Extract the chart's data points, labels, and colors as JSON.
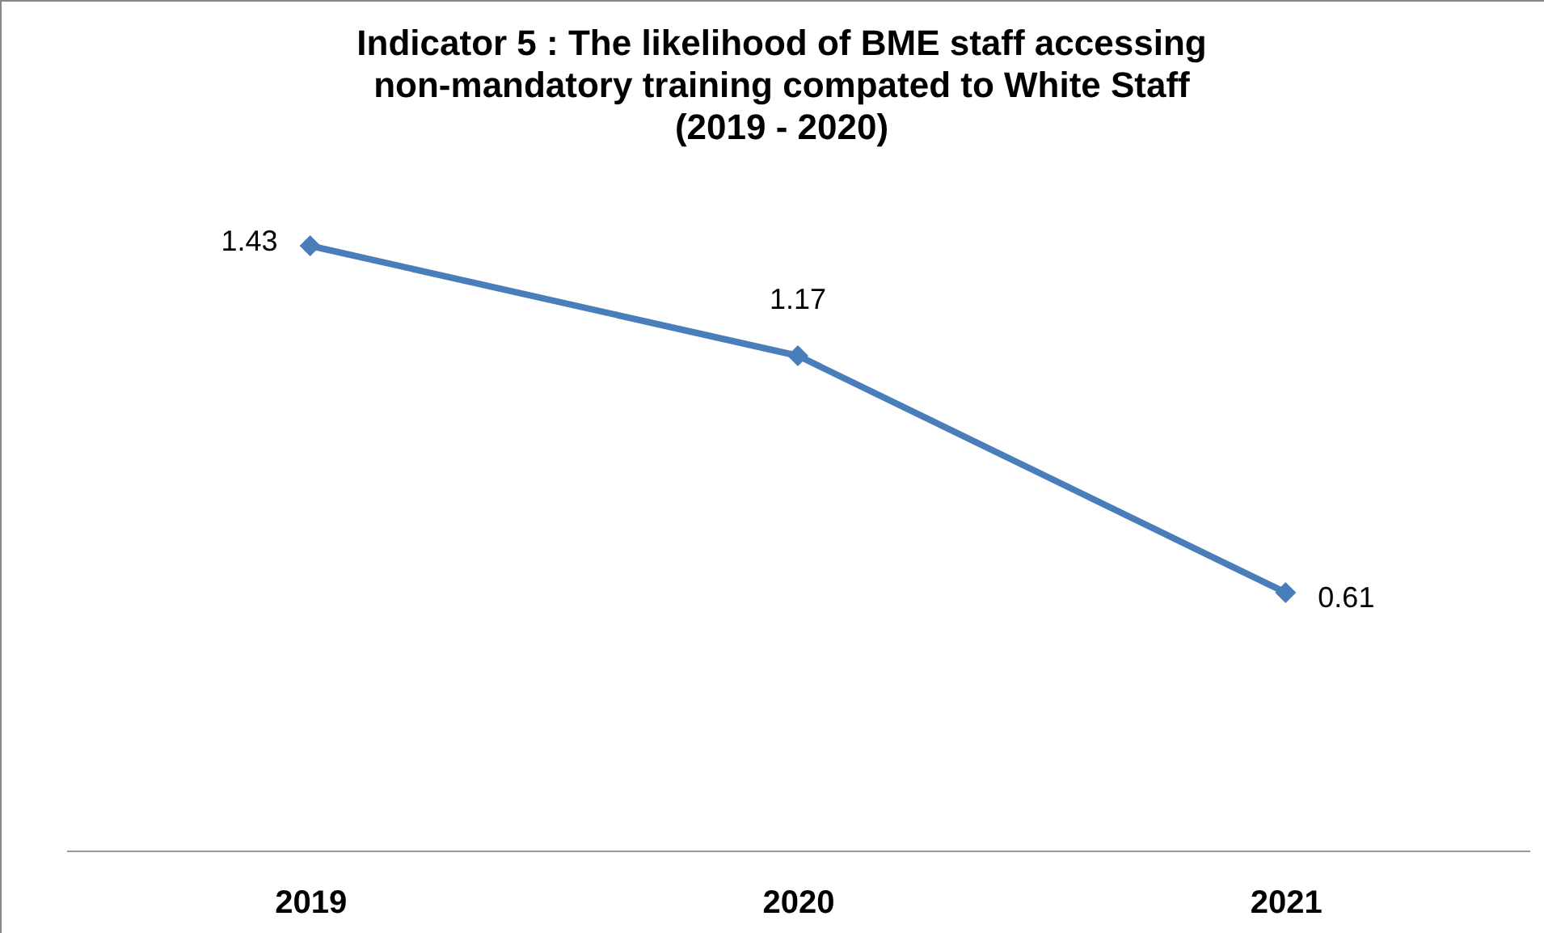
{
  "chart_data": {
    "type": "line",
    "title": [
      "Indicator 5 : The likelihood of BME staff accessing",
      "non-mandatory training   compated to White Staff",
      "(2019 - 2020)"
    ],
    "categories": [
      "2019",
      "2020",
      "2021"
    ],
    "series": [
      {
        "color": "#4a7ebb",
        "values": [
          1.43,
          1.17,
          0.61
        ]
      }
    ],
    "tick_labels": "x",
    "data_labels": true,
    "marker": "diamond"
  }
}
